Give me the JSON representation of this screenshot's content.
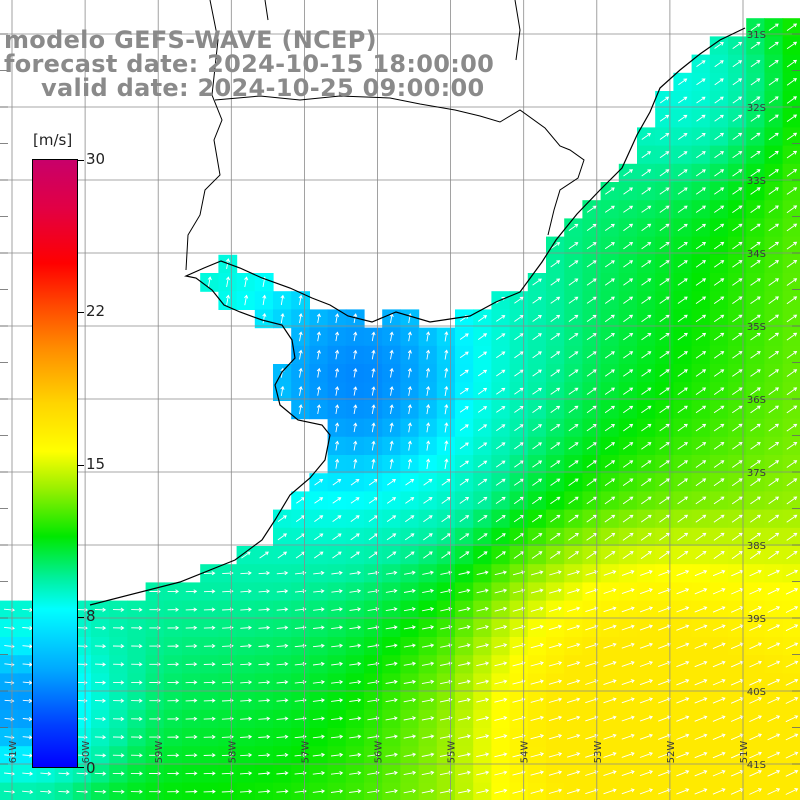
{
  "title": {
    "line1": "modelo GEFS-WAVE (NCEP)",
    "line2": "forecast date: 2024-10-15 18:00:00",
    "line3": "valid date: 2024-10-25 09:00:00"
  },
  "colorbar": {
    "unit": "[m/s]",
    "ticks": [
      {
        "label": "30",
        "value": 30
      },
      {
        "label": "22",
        "value": 22
      },
      {
        "label": "15",
        "value": 15
      },
      {
        "label": "8",
        "value": 8
      },
      {
        "label": "0",
        "value": 0
      }
    ]
  },
  "map": {
    "lat_labels": [
      "31S",
      "32S",
      "33S",
      "34S",
      "35S",
      "36S",
      "37S",
      "38S",
      "39S",
      "40S",
      "41S"
    ],
    "lon_labels": [
      "61W",
      "60W",
      "59W",
      "58W",
      "57W",
      "56W",
      "55W",
      "54W",
      "53W",
      "52W",
      "51W"
    ],
    "extent": {
      "lon_min": -61.5,
      "lon_max": -50.5,
      "lat_min": -41.5,
      "lat_max": -30.5
    }
  },
  "colors": {
    "title": "#8a8a8a",
    "arrows": "#ffffff",
    "coast": "#000000",
    "grid": "#8a8a8a"
  }
}
